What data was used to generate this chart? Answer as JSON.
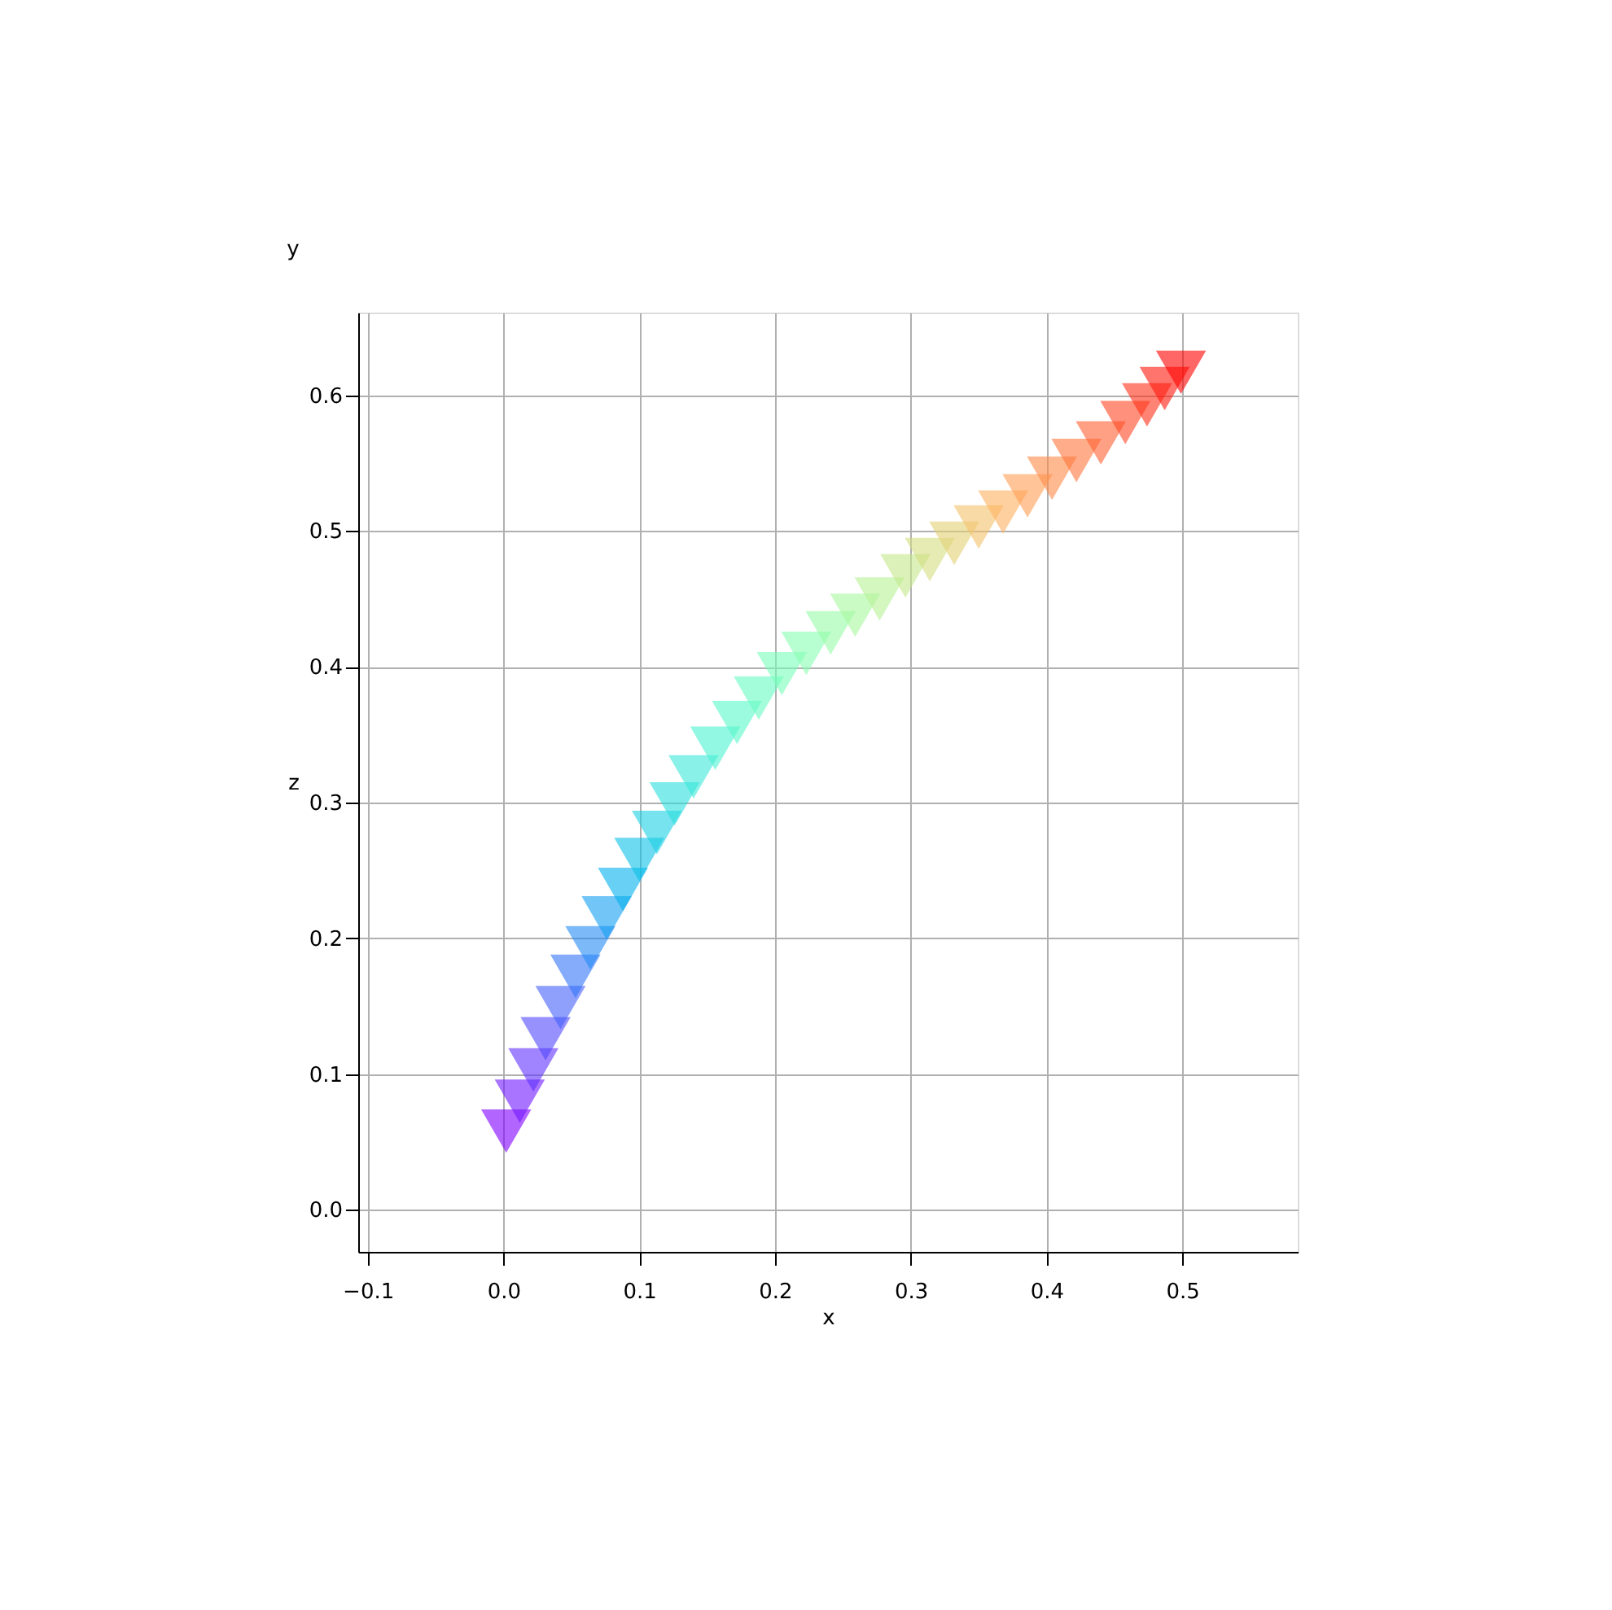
{
  "chart_data": {
    "type": "scatter",
    "xlabel": "x",
    "ylabel": "z",
    "annotations": [
      "y"
    ],
    "x": [
      0.002,
      0.012,
      0.022,
      0.031,
      0.042,
      0.053,
      0.064,
      0.076,
      0.088,
      0.1,
      0.113,
      0.126,
      0.14,
      0.156,
      0.172,
      0.188,
      0.205,
      0.223,
      0.241,
      0.259,
      0.277,
      0.296,
      0.314,
      0.332,
      0.35,
      0.368,
      0.386,
      0.404,
      0.422,
      0.44,
      0.458,
      0.474,
      0.487,
      0.499
    ],
    "values": [
      0.058,
      0.08,
      0.103,
      0.126,
      0.149,
      0.172,
      0.193,
      0.215,
      0.236,
      0.258,
      0.278,
      0.299,
      0.319,
      0.34,
      0.359,
      0.377,
      0.395,
      0.41,
      0.425,
      0.438,
      0.45,
      0.467,
      0.479,
      0.491,
      0.503,
      0.514,
      0.526,
      0.539,
      0.552,
      0.565,
      0.58,
      0.593,
      0.605,
      0.617
    ],
    "colors": [
      "#8000ff",
      "#7018ff",
      "#6130fe",
      "#5148fc",
      "#425ffa",
      "#3275f8",
      "#238af5",
      "#139ef1",
      "#04b0ed",
      "#0cc1e8",
      "#1bd0e3",
      "#2bdddd",
      "#3ae8d7",
      "#49f1d0",
      "#59f8c8",
      "#68fcc1",
      "#78ffb9",
      "#87ffb0",
      "#97fca7",
      "#a6f89e",
      "#b6f194",
      "#c5e88a",
      "#d4dd80",
      "#e4d075",
      "#f3c16a",
      "#ffb05f",
      "#ff9e53",
      "#ff8a48",
      "#ff753c",
      "#ff5f30",
      "#ff4824",
      "#ff3018",
      "#ff180c",
      "#ff0000"
    ],
    "marker": "triangle",
    "grid": true,
    "xlim": [
      -0.107,
      0.585
    ],
    "ylim": [
      -0.031,
      0.661
    ],
    "xticks": [
      {
        "value": -0.1,
        "label": "−0.1"
      },
      {
        "value": 0,
        "label": "0.0"
      },
      0.1,
      0.2,
      0.3,
      0.4,
      0.5
    ],
    "yticks": [
      {
        "value": 0,
        "label": "0.0"
      },
      0.1,
      0.2,
      0.3,
      0.4,
      0.5,
      0.6
    ]
  }
}
